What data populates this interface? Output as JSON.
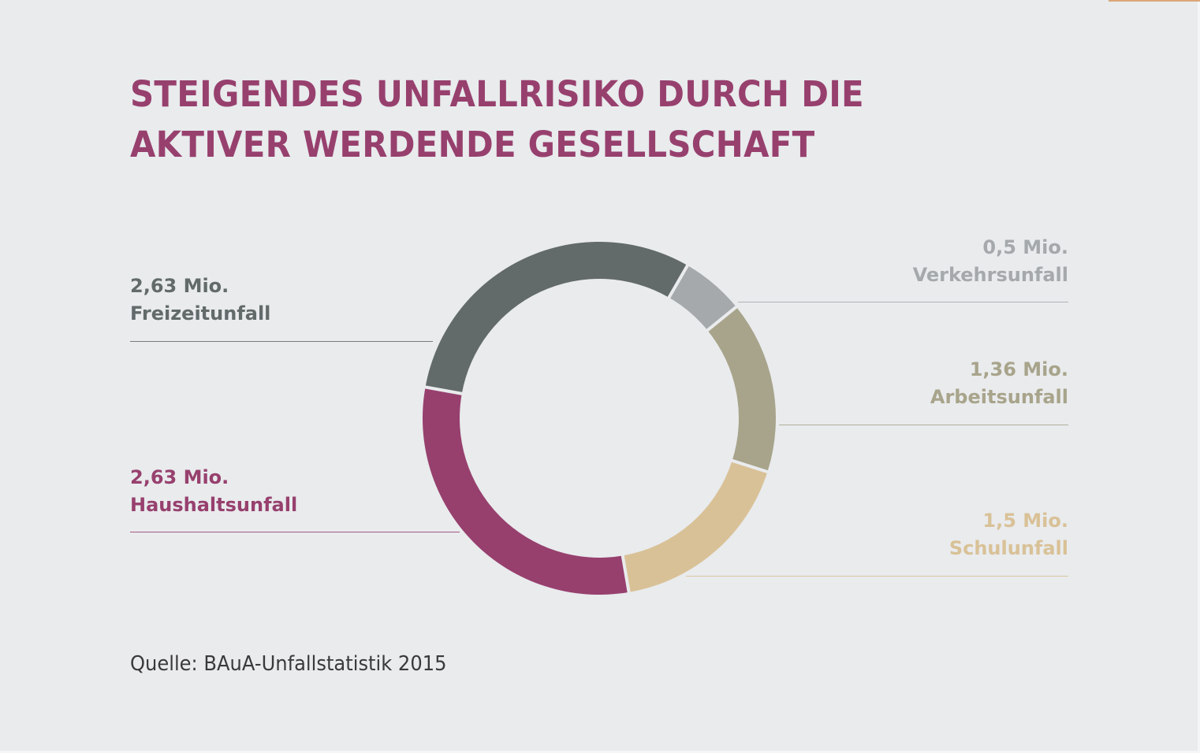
{
  "title": {
    "line1": "STEIGENDES UNFALLRISIKO DURCH DIE",
    "line2": "AKTIVER WERDENDE GESELLSCHAFT",
    "color": "#97406e"
  },
  "source": "Quelle: BAuA-Unfallstatistik 2015",
  "accent_color": "#d9a679",
  "chart_data": {
    "type": "pie",
    "variant": "donut",
    "title": "STEIGENDES UNFALLRISIKO DURCH DIE AKTIVER WERDENDE GESELLSCHAFT",
    "unit": "Mio.",
    "start_angle_deg": 30,
    "direction": "clockwise",
    "slices": [
      {
        "label": "Verkehrsunfall",
        "value": 0.5,
        "value_label": "0,5 Mio.",
        "color": "#a5a9ac",
        "side": "right"
      },
      {
        "label": "Arbeitsunfall",
        "value": 1.36,
        "value_label": "1,36 Mio.",
        "color": "#a8a48b",
        "side": "right"
      },
      {
        "label": "Schulunfall",
        "value": 1.5,
        "value_label": "1,5 Mio.",
        "color": "#d9c197",
        "side": "right"
      },
      {
        "label": "Haushaltsunfall",
        "value": 2.63,
        "value_label": "2,63 Mio.",
        "color": "#97406e",
        "side": "left"
      },
      {
        "label": "Freizeitunfall",
        "value": 2.63,
        "value_label": "2,63 Mio.",
        "color": "#636a6a",
        "side": "left"
      }
    ],
    "legend": "callouts with leader lines",
    "source": "BAuA-Unfallstatistik 2015"
  }
}
